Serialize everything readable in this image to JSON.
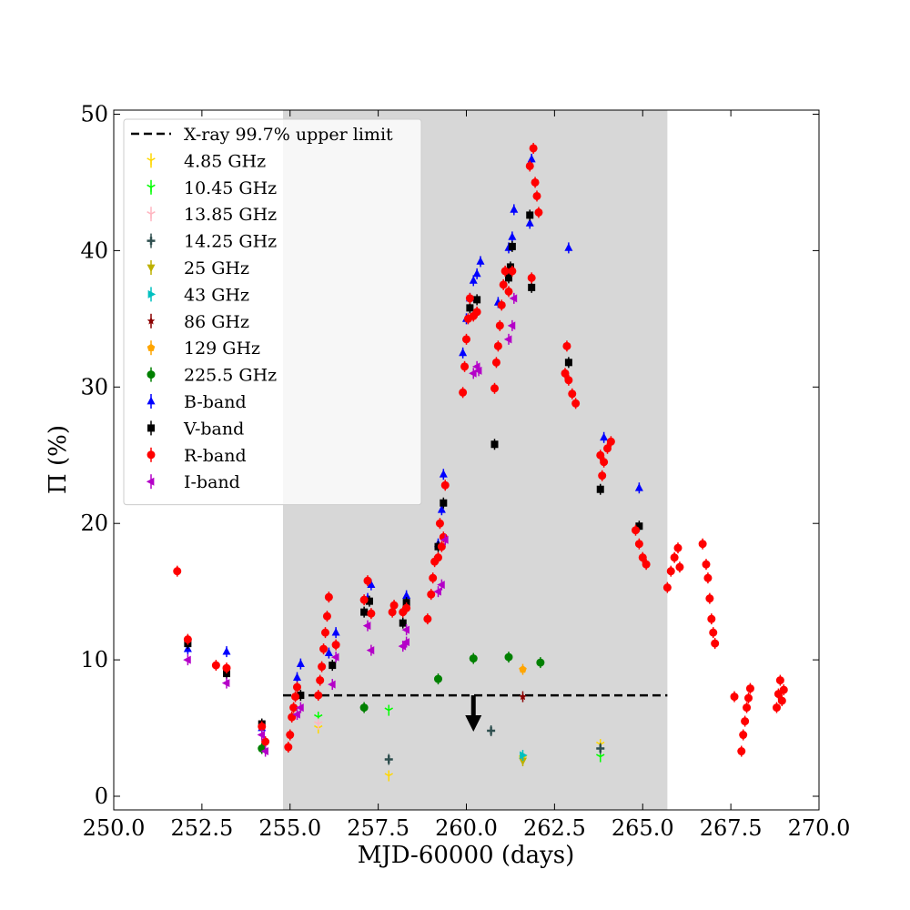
{
  "chart_data": {
    "type": "scatter",
    "xlabel": "MJD-60000 (days)",
    "ylabel": "Π (%)",
    "xlim": [
      250,
      270
    ],
    "ylim": [
      -1,
      50.3
    ],
    "xticks": [
      "250.0",
      "252.5",
      "255.0",
      "257.5",
      "260.0",
      "262.5",
      "265.0",
      "267.5",
      "270.0"
    ],
    "yticks": [
      "0",
      "10",
      "20",
      "30",
      "40",
      "50"
    ],
    "shaded_interval": [
      254.8,
      265.7
    ],
    "legend_position": "upper-left",
    "upper_limit": {
      "name": "X-ray 99.7% upper limit",
      "y": 7.4,
      "x_range": [
        254.8,
        265.7
      ],
      "arrow_x": 260.2,
      "arrow_to_y": 5.0
    },
    "series": [
      {
        "name": "4.85 GHz",
        "color": "#ffd700",
        "marker": "tri_down",
        "points": [
          [
            255.8,
            5.0
          ],
          [
            257.8,
            1.5
          ],
          [
            263.8,
            3.8
          ],
          [
            261.6,
            2.8
          ]
        ]
      },
      {
        "name": "10.45 GHz",
        "color": "#00ff00",
        "marker": "tri_down",
        "points": [
          [
            255.8,
            5.8
          ],
          [
            257.8,
            6.3
          ],
          [
            263.8,
            2.9
          ]
        ]
      },
      {
        "name": "13.85 GHz",
        "color": "#ffb6c1",
        "marker": "tri_down",
        "points": [
          [
            255.8,
            5.3
          ]
        ]
      },
      {
        "name": "14.25 GHz",
        "color": "#2f4f4f",
        "marker": "plus",
        "points": [
          [
            257.8,
            2.7
          ],
          [
            260.7,
            4.8
          ],
          [
            263.8,
            3.5
          ]
        ]
      },
      {
        "name": "25 GHz",
        "color": "#bdb000",
        "marker": "triangle_down",
        "points": [
          [
            261.6,
            2.6
          ]
        ]
      },
      {
        "name": "43 GHz",
        "color": "#00c0c0",
        "marker": "triangle_right",
        "points": [
          [
            261.6,
            3.0
          ]
        ]
      },
      {
        "name": "86 GHz",
        "color": "#8b0000",
        "marker": "star",
        "points": [
          [
            261.6,
            7.3
          ]
        ]
      },
      {
        "name": "129 GHz",
        "color": "#ffa500",
        "marker": "pentagon",
        "points": [
          [
            261.6,
            9.3
          ]
        ]
      },
      {
        "name": "225.5 GHz",
        "color": "#008000",
        "marker": "circle",
        "points": [
          [
            254.2,
            3.5
          ],
          [
            257.1,
            6.5
          ],
          [
            259.2,
            8.6
          ],
          [
            260.2,
            10.1
          ],
          [
            261.2,
            10.2
          ],
          [
            262.1,
            9.8
          ]
        ]
      },
      {
        "name": "B-band",
        "color": "#0000ff",
        "marker": "triangle_up",
        "points": [
          [
            252.1,
            10.8
          ],
          [
            253.2,
            10.6
          ],
          [
            254.2,
            5.0
          ],
          [
            255.3,
            9.7
          ],
          [
            255.2,
            8.7
          ],
          [
            256.1,
            10.5
          ],
          [
            256.3,
            12.0
          ],
          [
            257.2,
            14.5
          ],
          [
            257.3,
            15.5
          ],
          [
            258.3,
            14.7
          ],
          [
            259.2,
            18.5
          ],
          [
            259.3,
            21.0
          ],
          [
            259.35,
            23.6
          ],
          [
            259.9,
            32.5
          ],
          [
            260.0,
            35.0
          ],
          [
            260.1,
            36.5
          ],
          [
            260.2,
            37.8
          ],
          [
            260.3,
            38.3
          ],
          [
            260.4,
            39.2
          ],
          [
            260.9,
            36.2
          ],
          [
            261.2,
            40.2
          ],
          [
            261.3,
            41.0
          ],
          [
            261.35,
            43.0
          ],
          [
            261.8,
            42.0
          ],
          [
            261.85,
            46.7
          ],
          [
            262.9,
            40.2
          ],
          [
            263.9,
            26.3
          ],
          [
            264.9,
            22.6
          ]
        ]
      },
      {
        "name": "V-band",
        "color": "#000000",
        "marker": "square",
        "points": [
          [
            252.1,
            11.2
          ],
          [
            253.2,
            9.0
          ],
          [
            254.2,
            5.3
          ],
          [
            255.3,
            7.4
          ],
          [
            256.2,
            9.6
          ],
          [
            257.1,
            13.5
          ],
          [
            257.25,
            14.3
          ],
          [
            258.2,
            12.7
          ],
          [
            258.3,
            14.2
          ],
          [
            259.2,
            18.3
          ],
          [
            259.35,
            21.5
          ],
          [
            260.1,
            35.8
          ],
          [
            260.3,
            36.4
          ],
          [
            260.8,
            25.8
          ],
          [
            261.2,
            38.0
          ],
          [
            261.3,
            40.3
          ],
          [
            261.25,
            38.8
          ],
          [
            261.8,
            42.6
          ],
          [
            261.85,
            37.3
          ],
          [
            262.9,
            31.8
          ],
          [
            263.8,
            22.5
          ],
          [
            264.9,
            19.8
          ]
        ]
      },
      {
        "name": "R-band",
        "color": "#ff0000",
        "marker": "circle",
        "points": [
          [
            251.8,
            16.5
          ],
          [
            252.1,
            11.5
          ],
          [
            252.9,
            9.6
          ],
          [
            253.2,
            9.4
          ],
          [
            254.2,
            5.1
          ],
          [
            254.3,
            4.0
          ],
          [
            254.95,
            3.6
          ],
          [
            255.0,
            4.5
          ],
          [
            255.05,
            5.8
          ],
          [
            255.1,
            6.5
          ],
          [
            255.15,
            7.3
          ],
          [
            255.2,
            8.0
          ],
          [
            255.8,
            7.4
          ],
          [
            255.85,
            8.5
          ],
          [
            255.9,
            9.5
          ],
          [
            255.95,
            10.8
          ],
          [
            256.0,
            12.0
          ],
          [
            256.05,
            13.2
          ],
          [
            256.1,
            14.6
          ],
          [
            256.3,
            11.1
          ],
          [
            257.1,
            14.4
          ],
          [
            257.2,
            15.8
          ],
          [
            257.3,
            13.4
          ],
          [
            257.9,
            13.5
          ],
          [
            257.95,
            14.0
          ],
          [
            258.2,
            13.5
          ],
          [
            258.3,
            13.8
          ],
          [
            258.9,
            13.0
          ],
          [
            259.0,
            14.8
          ],
          [
            259.05,
            16.0
          ],
          [
            259.1,
            17.2
          ],
          [
            259.2,
            17.5
          ],
          [
            259.25,
            20.0
          ],
          [
            259.3,
            18.3
          ],
          [
            259.35,
            19.0
          ],
          [
            259.4,
            22.8
          ],
          [
            259.9,
            29.6
          ],
          [
            259.95,
            31.5
          ],
          [
            260.0,
            33.5
          ],
          [
            260.05,
            35.0
          ],
          [
            260.1,
            36.5
          ],
          [
            260.2,
            35.2
          ],
          [
            260.3,
            35.5
          ],
          [
            260.8,
            29.9
          ],
          [
            260.85,
            31.8
          ],
          [
            260.9,
            33.0
          ],
          [
            260.95,
            34.5
          ],
          [
            261.0,
            36.0
          ],
          [
            261.05,
            37.5
          ],
          [
            261.1,
            38.5
          ],
          [
            261.2,
            37.0
          ],
          [
            261.3,
            38.5
          ],
          [
            261.8,
            46.2
          ],
          [
            261.85,
            38.0
          ],
          [
            261.9,
            47.5
          ],
          [
            261.95,
            45.0
          ],
          [
            262.0,
            44.0
          ],
          [
            262.05,
            42.8
          ],
          [
            262.8,
            31.0
          ],
          [
            262.85,
            33.0
          ],
          [
            262.9,
            30.5
          ],
          [
            263.0,
            29.5
          ],
          [
            263.1,
            28.8
          ],
          [
            263.8,
            25.0
          ],
          [
            263.85,
            23.5
          ],
          [
            263.9,
            24.5
          ],
          [
            264.0,
            25.5
          ],
          [
            264.1,
            26.0
          ],
          [
            264.8,
            19.5
          ],
          [
            264.9,
            18.5
          ],
          [
            265.0,
            17.5
          ],
          [
            265.1,
            17.0
          ],
          [
            265.7,
            15.3
          ],
          [
            265.8,
            16.5
          ],
          [
            265.9,
            17.5
          ],
          [
            266.0,
            18.2
          ],
          [
            266.05,
            16.8
          ],
          [
            266.7,
            18.5
          ],
          [
            266.8,
            17.0
          ],
          [
            266.85,
            16.0
          ],
          [
            266.9,
            14.5
          ],
          [
            266.95,
            13.0
          ],
          [
            267.0,
            12.0
          ],
          [
            267.05,
            11.2
          ],
          [
            267.6,
            7.3
          ],
          [
            267.8,
            3.3
          ],
          [
            267.85,
            4.5
          ],
          [
            267.9,
            5.5
          ],
          [
            267.95,
            6.5
          ],
          [
            268.0,
            7.2
          ],
          [
            268.05,
            7.9
          ],
          [
            268.8,
            6.5
          ],
          [
            268.85,
            7.5
          ],
          [
            268.9,
            8.5
          ],
          [
            268.95,
            7.0
          ],
          [
            269.0,
            7.8
          ]
        ]
      },
      {
        "name": "I-band",
        "color": "#b400c8",
        "marker": "triangle_left",
        "points": [
          [
            252.1,
            10.0
          ],
          [
            253.2,
            8.3
          ],
          [
            254.2,
            4.5
          ],
          [
            254.3,
            3.3
          ],
          [
            255.3,
            6.5
          ],
          [
            255.2,
            6.0
          ],
          [
            256.2,
            8.2
          ],
          [
            256.3,
            10.2
          ],
          [
            257.2,
            12.5
          ],
          [
            257.3,
            10.7
          ],
          [
            258.2,
            11.0
          ],
          [
            258.3,
            11.3
          ],
          [
            258.3,
            12.2
          ],
          [
            259.2,
            15.0
          ],
          [
            259.3,
            15.5
          ],
          [
            259.4,
            18.8
          ],
          [
            260.2,
            31.0
          ],
          [
            260.3,
            31.5
          ],
          [
            260.35,
            31.2
          ],
          [
            261.2,
            33.5
          ],
          [
            261.3,
            34.5
          ],
          [
            261.35,
            36.5
          ]
        ]
      }
    ]
  }
}
